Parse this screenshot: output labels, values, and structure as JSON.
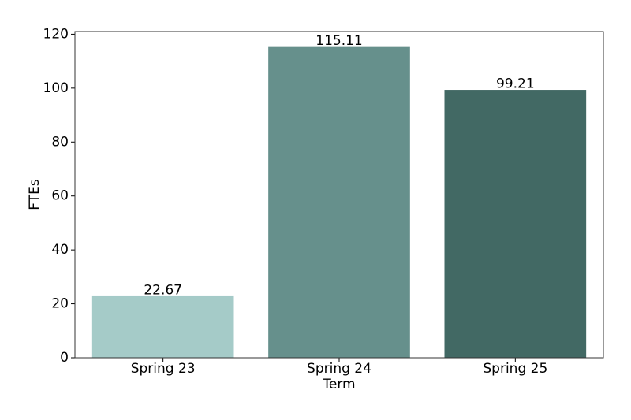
{
  "chart_data": {
    "type": "bar",
    "x_label": "Term",
    "y_label": "FTEs",
    "categories": [
      "Spring 23",
      "Spring 24",
      "Spring 25"
    ],
    "values": [
      22.67,
      115.11,
      99.21
    ],
    "colors": [
      "#a5cbc8",
      "#66908c",
      "#426964"
    ],
    "ylim": [
      0,
      121
    ],
    "yticks": [
      0,
      20,
      40,
      60,
      80,
      100,
      120
    ]
  }
}
